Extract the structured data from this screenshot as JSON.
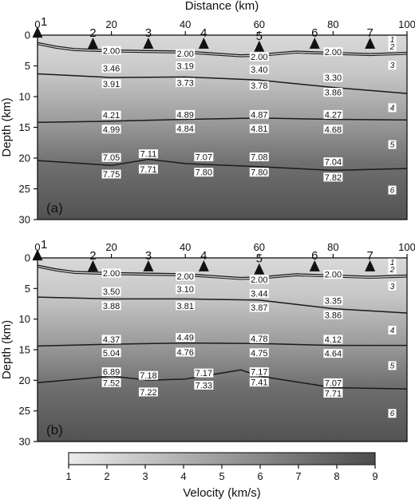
{
  "figure": {
    "x_axis_title": "Distance (km)",
    "y_axis_title": "Depth (km)",
    "x_ticks": [
      "0",
      "20",
      "40",
      "60",
      "80",
      "100"
    ],
    "y_ticks": [
      "0",
      "5",
      "10",
      "15",
      "20",
      "25",
      "30"
    ]
  },
  "colorbar": {
    "label": "Velocity (km/s)",
    "ticks": [
      "1",
      "2",
      "3",
      "4",
      "5",
      "6",
      "7",
      "8",
      "9"
    ],
    "range": [
      1,
      9
    ],
    "colors": {
      "low": "#ececec",
      "high": "#4c4c4c"
    }
  },
  "chart_data": [
    {
      "type": "heatmap",
      "panel_label": "(a)",
      "xlabel": "Distance (km)",
      "ylabel": "Depth (km)",
      "xlim": [
        0,
        100
      ],
      "ylim": [
        30,
        0
      ],
      "stations": [
        {
          "label": "1",
          "x": 0
        },
        {
          "label": "2",
          "x": 15
        },
        {
          "label": "3",
          "x": 30
        },
        {
          "label": "4",
          "x": 45
        },
        {
          "label": "5",
          "x": 60
        },
        {
          "label": "6",
          "x": 75
        },
        {
          "label": "7",
          "x": 90
        }
      ],
      "interfaces": [
        {
          "x": [
            0,
            5,
            10,
            20,
            30,
            40,
            50,
            55,
            60,
            70,
            80,
            90,
            100
          ],
          "depth": [
            1.2,
            1.8,
            2.2,
            2.4,
            2.5,
            2.6,
            3.0,
            3.2,
            3.1,
            2.6,
            2.8,
            3.0,
            2.8
          ]
        },
        {
          "x": [
            0,
            20,
            40,
            60,
            80,
            100
          ],
          "depth": [
            6.3,
            6.9,
            6.8,
            7.3,
            8.5,
            9.5
          ]
        },
        {
          "x": [
            0,
            20,
            40,
            60,
            80,
            100
          ],
          "depth": [
            14.2,
            14.0,
            13.7,
            13.5,
            13.7,
            13.8
          ]
        },
        {
          "x": [
            0,
            20,
            30,
            40,
            60,
            80,
            100
          ],
          "depth": [
            20.4,
            21.2,
            20.2,
            20.9,
            21.4,
            22.0,
            21.7
          ]
        }
      ],
      "velocity_labels": [
        {
          "x": 20,
          "depth": 2.5,
          "text": "2.00"
        },
        {
          "x": 40,
          "depth": 3.0,
          "text": "2.00"
        },
        {
          "x": 60,
          "depth": 3.5,
          "text": "2.00"
        },
        {
          "x": 80,
          "depth": 2.7,
          "text": "2.00"
        },
        {
          "x": 20,
          "depth": 5.4,
          "text": "3.46"
        },
        {
          "x": 40,
          "depth": 5.0,
          "text": "3.19"
        },
        {
          "x": 60,
          "depth": 5.6,
          "text": "3.40"
        },
        {
          "x": 80,
          "depth": 6.9,
          "text": "3.30"
        },
        {
          "x": 20,
          "depth": 7.9,
          "text": "3.91"
        },
        {
          "x": 40,
          "depth": 7.7,
          "text": "3.73"
        },
        {
          "x": 60,
          "depth": 8.2,
          "text": "3.78"
        },
        {
          "x": 80,
          "depth": 9.3,
          "text": "3.86"
        },
        {
          "x": 20,
          "depth": 13.0,
          "text": "4.21"
        },
        {
          "x": 40,
          "depth": 12.9,
          "text": "4.89"
        },
        {
          "x": 60,
          "depth": 12.9,
          "text": "4.87"
        },
        {
          "x": 80,
          "depth": 12.9,
          "text": "4.27"
        },
        {
          "x": 20,
          "depth": 15.3,
          "text": "4.99"
        },
        {
          "x": 40,
          "depth": 15.2,
          "text": "4.84"
        },
        {
          "x": 60,
          "depth": 15.2,
          "text": "4.81"
        },
        {
          "x": 80,
          "depth": 15.3,
          "text": "4.68"
        },
        {
          "x": 20,
          "depth": 19.9,
          "text": "7.05"
        },
        {
          "x": 30,
          "depth": 19.3,
          "text": "7.11"
        },
        {
          "x": 45,
          "depth": 19.8,
          "text": "7.07"
        },
        {
          "x": 60,
          "depth": 19.8,
          "text": "7.08"
        },
        {
          "x": 80,
          "depth": 20.6,
          "text": "7.04"
        },
        {
          "x": 20,
          "depth": 22.6,
          "text": "7.75"
        },
        {
          "x": 30,
          "depth": 21.8,
          "text": "7.71"
        },
        {
          "x": 45,
          "depth": 22.3,
          "text": "7.80"
        },
        {
          "x": 60,
          "depth": 22.3,
          "text": "7.80"
        },
        {
          "x": 80,
          "depth": 23.1,
          "text": "7.82"
        }
      ],
      "layer_numbers": [
        {
          "x": 96,
          "depth": 0.7,
          "text": "1"
        },
        {
          "x": 96,
          "depth": 1.9,
          "text": "2"
        },
        {
          "x": 96,
          "depth": 4.9,
          "text": "3"
        },
        {
          "x": 96,
          "depth": 11.8,
          "text": "4"
        },
        {
          "x": 96,
          "depth": 17.8,
          "text": "5"
        },
        {
          "x": 96,
          "depth": 25.2,
          "text": "6"
        }
      ]
    },
    {
      "type": "heatmap",
      "panel_label": "(b)",
      "xlabel": "Distance (km)",
      "ylabel": "Depth (km)",
      "xlim": [
        0,
        100
      ],
      "ylim": [
        30,
        0
      ],
      "stations": [
        {
          "label": "1",
          "x": 0
        },
        {
          "label": "2",
          "x": 15
        },
        {
          "label": "3",
          "x": 30
        },
        {
          "label": "4",
          "x": 45
        },
        {
          "label": "5",
          "x": 60
        },
        {
          "label": "6",
          "x": 75
        },
        {
          "label": "7",
          "x": 90
        }
      ],
      "interfaces": [
        {
          "x": [
            0,
            5,
            10,
            20,
            30,
            40,
            50,
            55,
            60,
            70,
            80,
            90,
            100
          ],
          "depth": [
            1.2,
            1.8,
            2.2,
            2.4,
            2.5,
            2.6,
            3.0,
            3.2,
            3.1,
            2.6,
            2.8,
            3.0,
            2.8
          ]
        },
        {
          "x": [
            0,
            20,
            40,
            60,
            80,
            100
          ],
          "depth": [
            6.4,
            6.7,
            6.7,
            6.9,
            8.3,
            9.0
          ]
        },
        {
          "x": [
            0,
            20,
            40,
            60,
            80,
            100
          ],
          "depth": [
            14.4,
            14.1,
            13.9,
            14.0,
            14.3,
            14.3
          ]
        },
        {
          "x": [
            0,
            20,
            30,
            40,
            55,
            60,
            80,
            100
          ],
          "depth": [
            20.4,
            19.3,
            20.0,
            19.8,
            18.3,
            19.3,
            21.2,
            21.4
          ]
        }
      ],
      "velocity_labels": [
        {
          "x": 20,
          "depth": 2.5,
          "text": "2.00"
        },
        {
          "x": 40,
          "depth": 3.0,
          "text": "2.00"
        },
        {
          "x": 60,
          "depth": 3.5,
          "text": "2.00"
        },
        {
          "x": 80,
          "depth": 2.7,
          "text": "2.00"
        },
        {
          "x": 20,
          "depth": 5.5,
          "text": "3.50"
        },
        {
          "x": 40,
          "depth": 5.1,
          "text": "3.10"
        },
        {
          "x": 60,
          "depth": 5.8,
          "text": "3.44"
        },
        {
          "x": 80,
          "depth": 7.0,
          "text": "3.35"
        },
        {
          "x": 20,
          "depth": 7.8,
          "text": "3.88"
        },
        {
          "x": 40,
          "depth": 7.8,
          "text": "3.81"
        },
        {
          "x": 60,
          "depth": 8.1,
          "text": "3.87"
        },
        {
          "x": 80,
          "depth": 9.3,
          "text": "3.86"
        },
        {
          "x": 20,
          "depth": 13.3,
          "text": "4.37"
        },
        {
          "x": 40,
          "depth": 13.0,
          "text": "4.49"
        },
        {
          "x": 60,
          "depth": 13.2,
          "text": "4.78"
        },
        {
          "x": 80,
          "depth": 13.3,
          "text": "4.12"
        },
        {
          "x": 20,
          "depth": 15.5,
          "text": "5.04"
        },
        {
          "x": 40,
          "depth": 15.4,
          "text": "4.76"
        },
        {
          "x": 60,
          "depth": 15.5,
          "text": "4.75"
        },
        {
          "x": 80,
          "depth": 15.6,
          "text": "4.64"
        },
        {
          "x": 20,
          "depth": 18.6,
          "text": "6.89"
        },
        {
          "x": 30,
          "depth": 19.2,
          "text": "7.18"
        },
        {
          "x": 45,
          "depth": 18.8,
          "text": "7.17"
        },
        {
          "x": 60,
          "depth": 18.6,
          "text": "7.17"
        },
        {
          "x": 80,
          "depth": 20.4,
          "text": "7.07"
        },
        {
          "x": 20,
          "depth": 20.4,
          "text": "7.52"
        },
        {
          "x": 30,
          "depth": 21.9,
          "text": "7.22"
        },
        {
          "x": 45,
          "depth": 20.8,
          "text": "7.33"
        },
        {
          "x": 60,
          "depth": 20.3,
          "text": "7.41"
        },
        {
          "x": 80,
          "depth": 22.1,
          "text": "7.71"
        }
      ],
      "layer_numbers": [
        {
          "x": 96,
          "depth": 0.7,
          "text": "1"
        },
        {
          "x": 96,
          "depth": 1.9,
          "text": "2"
        },
        {
          "x": 96,
          "depth": 4.6,
          "text": "3"
        },
        {
          "x": 96,
          "depth": 11.8,
          "text": "4"
        },
        {
          "x": 96,
          "depth": 17.6,
          "text": "5"
        },
        {
          "x": 96,
          "depth": 25.4,
          "text": "6"
        }
      ]
    }
  ]
}
